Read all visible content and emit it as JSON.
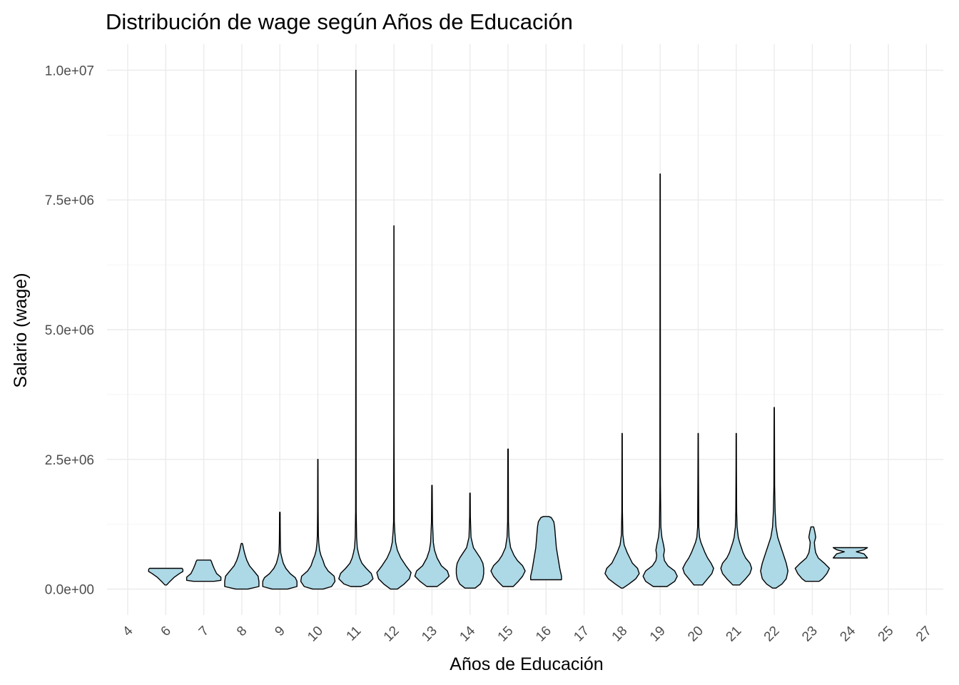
{
  "chart_data": {
    "type": "violin",
    "title": "Distribución de wage según Años de Educación",
    "xlabel": "Años de Educación",
    "ylabel": "Salario (wage)",
    "fill_color": "#add8e6",
    "outline_color": "#000000",
    "grid": true,
    "ylim": [
      -500000,
      10500000
    ],
    "y_ticks": [
      0,
      2500000,
      5000000,
      7500000,
      10000000
    ],
    "y_tick_labels": [
      "0.0e+00",
      "2.5e+06",
      "5.0e+06",
      "7.5e+06",
      "1.0e+07"
    ],
    "x_tick_rotation": 45,
    "categories": [
      "4",
      "6",
      "7",
      "8",
      "9",
      "10",
      "11",
      "12",
      "13",
      "14",
      "15",
      "16",
      "17",
      "18",
      "19",
      "20",
      "21",
      "22",
      "23",
      "24",
      "25",
      "27"
    ],
    "violins": [
      {
        "category": "4",
        "profile": []
      },
      {
        "category": "6",
        "profile": [
          [
            80000,
            0.05
          ],
          [
            150000,
            0.25
          ],
          [
            230000,
            0.5
          ],
          [
            300000,
            0.8
          ],
          [
            340000,
            1.0
          ],
          [
            380000,
            1.0
          ],
          [
            400000,
            0.95
          ]
        ]
      },
      {
        "category": "7",
        "profile": [
          [
            150000,
            0.6
          ],
          [
            170000,
            1.0
          ],
          [
            230000,
            1.0
          ],
          [
            300000,
            0.75
          ],
          [
            400000,
            0.6
          ],
          [
            480000,
            0.5
          ],
          [
            530000,
            0.45
          ],
          [
            560000,
            0.4
          ]
        ]
      },
      {
        "category": "8",
        "profile": [
          [
            0,
            0.35
          ],
          [
            50000,
            1.0
          ],
          [
            150000,
            1.0
          ],
          [
            250000,
            0.95
          ],
          [
            350000,
            0.7
          ],
          [
            450000,
            0.45
          ],
          [
            550000,
            0.3
          ],
          [
            650000,
            0.2
          ],
          [
            750000,
            0.12
          ],
          [
            850000,
            0.06
          ],
          [
            880000,
            0.03
          ]
        ]
      },
      {
        "category": "9",
        "profile": [
          [
            0,
            0.45
          ],
          [
            50000,
            1.0
          ],
          [
            150000,
            1.0
          ],
          [
            220000,
            0.9
          ],
          [
            300000,
            0.6
          ],
          [
            400000,
            0.35
          ],
          [
            500000,
            0.2
          ],
          [
            600000,
            0.12
          ],
          [
            700000,
            0.05
          ],
          [
            900000,
            0.03
          ],
          [
            1200000,
            0.02
          ],
          [
            1480000,
            0.015
          ]
        ]
      },
      {
        "category": "10",
        "profile": [
          [
            0,
            0.3
          ],
          [
            50000,
            0.8
          ],
          [
            150000,
            1.0
          ],
          [
            250000,
            0.95
          ],
          [
            350000,
            0.6
          ],
          [
            450000,
            0.4
          ],
          [
            550000,
            0.3
          ],
          [
            650000,
            0.18
          ],
          [
            750000,
            0.1
          ],
          [
            900000,
            0.05
          ],
          [
            1050000,
            0.03
          ],
          [
            1500000,
            0.015
          ],
          [
            2500000,
            0.01
          ]
        ]
      },
      {
        "category": "11",
        "profile": [
          [
            50000,
            0.3
          ],
          [
            100000,
            0.7
          ],
          [
            200000,
            1.0
          ],
          [
            300000,
            0.9
          ],
          [
            400000,
            0.6
          ],
          [
            500000,
            0.35
          ],
          [
            600000,
            0.22
          ],
          [
            700000,
            0.14
          ],
          [
            800000,
            0.08
          ],
          [
            1000000,
            0.04
          ],
          [
            1500000,
            0.015
          ],
          [
            5000000,
            0.008
          ],
          [
            10000000,
            0.006
          ]
        ]
      },
      {
        "category": "12",
        "profile": [
          [
            0,
            0.2
          ],
          [
            100000,
            0.6
          ],
          [
            200000,
            0.9
          ],
          [
            320000,
            1.0
          ],
          [
            450000,
            0.7
          ],
          [
            600000,
            0.4
          ],
          [
            750000,
            0.2
          ],
          [
            900000,
            0.1
          ],
          [
            1100000,
            0.05
          ],
          [
            1300000,
            0.02
          ],
          [
            3000000,
            0.008
          ],
          [
            7000000,
            0.006
          ]
        ]
      },
      {
        "category": "13",
        "profile": [
          [
            50000,
            0.3
          ],
          [
            150000,
            0.7
          ],
          [
            250000,
            1.0
          ],
          [
            350000,
            0.9
          ],
          [
            450000,
            0.55
          ],
          [
            600000,
            0.3
          ],
          [
            750000,
            0.15
          ],
          [
            900000,
            0.08
          ],
          [
            1300000,
            0.03
          ],
          [
            2000000,
            0.012
          ]
        ]
      },
      {
        "category": "14",
        "profile": [
          [
            20000,
            0.3
          ],
          [
            100000,
            0.6
          ],
          [
            200000,
            0.75
          ],
          [
            300000,
            0.8
          ],
          [
            400000,
            0.8
          ],
          [
            500000,
            0.75
          ],
          [
            600000,
            0.6
          ],
          [
            700000,
            0.4
          ],
          [
            800000,
            0.2
          ],
          [
            1000000,
            0.06
          ],
          [
            1400000,
            0.02
          ],
          [
            1850000,
            0.012
          ]
        ]
      },
      {
        "category": "15",
        "profile": [
          [
            50000,
            0.3
          ],
          [
            150000,
            0.6
          ],
          [
            250000,
            0.85
          ],
          [
            350000,
            1.0
          ],
          [
            450000,
            0.85
          ],
          [
            550000,
            0.55
          ],
          [
            650000,
            0.35
          ],
          [
            800000,
            0.15
          ],
          [
            1000000,
            0.06
          ],
          [
            1300000,
            0.025
          ],
          [
            2700000,
            0.012
          ]
        ]
      },
      {
        "category": "16",
        "profile": [
          [
            180000,
            0.9
          ],
          [
            250000,
            0.9
          ],
          [
            400000,
            0.8
          ],
          [
            600000,
            0.7
          ],
          [
            800000,
            0.6
          ],
          [
            1000000,
            0.55
          ],
          [
            1200000,
            0.5
          ],
          [
            1300000,
            0.45
          ],
          [
            1380000,
            0.3
          ],
          [
            1400000,
            0.15
          ]
        ]
      },
      {
        "category": "17",
        "profile": []
      },
      {
        "category": "18",
        "profile": [
          [
            20000,
            0.05
          ],
          [
            100000,
            0.4
          ],
          [
            200000,
            0.8
          ],
          [
            300000,
            1.0
          ],
          [
            400000,
            0.9
          ],
          [
            500000,
            0.6
          ],
          [
            600000,
            0.45
          ],
          [
            700000,
            0.3
          ],
          [
            850000,
            0.12
          ],
          [
            1050000,
            0.04
          ],
          [
            1500000,
            0.015
          ],
          [
            3000000,
            0.01
          ]
        ]
      },
      {
        "category": "19",
        "profile": [
          [
            50000,
            0.4
          ],
          [
            150000,
            0.85
          ],
          [
            250000,
            1.0
          ],
          [
            350000,
            0.85
          ],
          [
            450000,
            0.45
          ],
          [
            550000,
            0.25
          ],
          [
            650000,
            0.2
          ],
          [
            750000,
            0.25
          ],
          [
            850000,
            0.2
          ],
          [
            1000000,
            0.1
          ],
          [
            1200000,
            0.04
          ],
          [
            2000000,
            0.015
          ],
          [
            8000000,
            0.008
          ]
        ]
      },
      {
        "category": "20",
        "profile": [
          [
            80000,
            0.25
          ],
          [
            200000,
            0.55
          ],
          [
            300000,
            0.8
          ],
          [
            400000,
            0.9
          ],
          [
            500000,
            0.75
          ],
          [
            600000,
            0.55
          ],
          [
            700000,
            0.4
          ],
          [
            800000,
            0.28
          ],
          [
            900000,
            0.16
          ],
          [
            1000000,
            0.08
          ],
          [
            1200000,
            0.035
          ],
          [
            2200000,
            0.015
          ],
          [
            3000000,
            0.01
          ]
        ]
      },
      {
        "category": "21",
        "profile": [
          [
            80000,
            0.2
          ],
          [
            200000,
            0.55
          ],
          [
            300000,
            0.8
          ],
          [
            400000,
            0.9
          ],
          [
            500000,
            0.8
          ],
          [
            600000,
            0.55
          ],
          [
            700000,
            0.4
          ],
          [
            800000,
            0.3
          ],
          [
            900000,
            0.2
          ],
          [
            1000000,
            0.12
          ],
          [
            1200000,
            0.05
          ],
          [
            1500000,
            0.025
          ],
          [
            2300000,
            0.012
          ],
          [
            3000000,
            0.01
          ]
        ]
      },
      {
        "category": "22",
        "profile": [
          [
            20000,
            0.1
          ],
          [
            100000,
            0.45
          ],
          [
            200000,
            0.7
          ],
          [
            350000,
            0.8
          ],
          [
            500000,
            0.7
          ],
          [
            600000,
            0.6
          ],
          [
            700000,
            0.5
          ],
          [
            800000,
            0.4
          ],
          [
            900000,
            0.3
          ],
          [
            1000000,
            0.2
          ],
          [
            1200000,
            0.1
          ],
          [
            1500000,
            0.05
          ],
          [
            2000000,
            0.02
          ],
          [
            3500000,
            0.01
          ]
        ]
      },
      {
        "category": "23",
        "profile": [
          [
            150000,
            0.4
          ],
          [
            200000,
            0.6
          ],
          [
            300000,
            0.85
          ],
          [
            400000,
            1.0
          ],
          [
            500000,
            0.7
          ],
          [
            600000,
            0.35
          ],
          [
            700000,
            0.2
          ],
          [
            800000,
            0.15
          ],
          [
            900000,
            0.12
          ],
          [
            1000000,
            0.2
          ],
          [
            1100000,
            0.15
          ],
          [
            1200000,
            0.08
          ]
        ]
      },
      {
        "category": "24",
        "profile": [
          [
            600000,
            1.0
          ],
          [
            680000,
            0.8
          ],
          [
            720000,
            0.35
          ],
          [
            760000,
            0.8
          ],
          [
            800000,
            1.0
          ]
        ]
      },
      {
        "category": "25",
        "profile": []
      },
      {
        "category": "27",
        "profile": []
      }
    ]
  }
}
